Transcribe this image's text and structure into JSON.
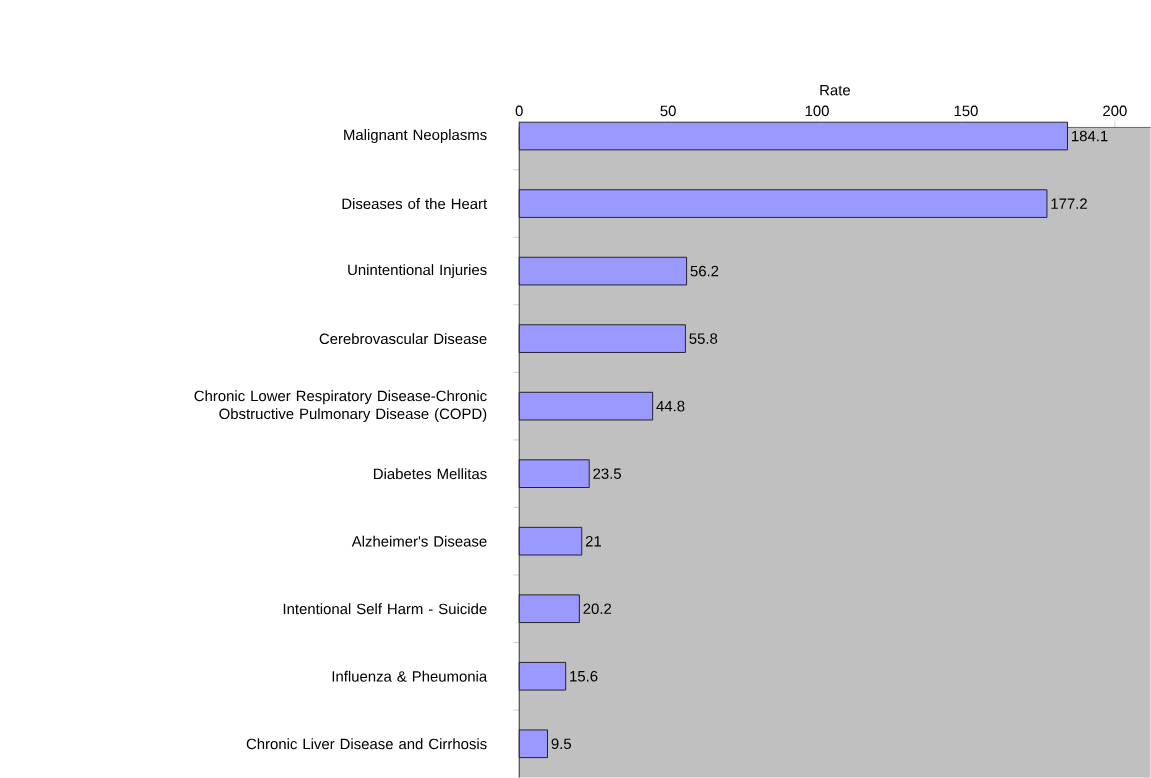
{
  "chart_data": {
    "type": "bar",
    "orientation": "horizontal",
    "xlabel": "Rate",
    "categories": [
      "Malignant Neoplasms",
      "Diseases of the Heart",
      "Unintentional Injuries",
      "Cerebrovascular Disease",
      "Chronic Lower Respiratory Disease-Chronic Obstructive Pulmonary Disease (COPD)",
      "Diabetes Mellitas",
      "Alzheimer's Disease",
      "Intentional Self Harm - Suicide",
      "Influenza & Pheumonia",
      "Chronic Liver Disease and Cirrhosis"
    ],
    "values": [
      184.1,
      177.2,
      56.2,
      55.8,
      44.8,
      23.5,
      21,
      20.2,
      15.6,
      9.5
    ],
    "color": "#9999ff",
    "xlim": [
      0,
      212
    ],
    "xticks": [
      0,
      50,
      100,
      150,
      200
    ],
    "data_labels": true
  }
}
